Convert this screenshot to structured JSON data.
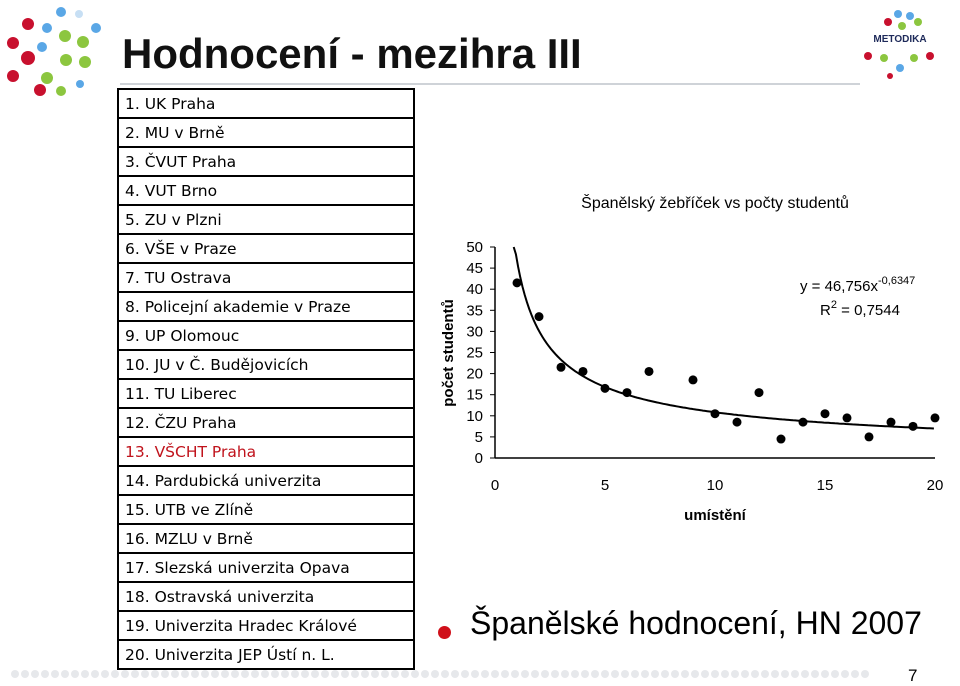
{
  "slide": {
    "title": "Hodnocení - mezihra III",
    "logo_text": "METODIKA",
    "page_number": "7",
    "bullet_text": "Španělské hodnocení, HN 2007",
    "colors": {
      "accent_red": "#c0131c",
      "dot_blue": "#5aa7e6",
      "dot_green": "#8cc63f",
      "dot_red": "#c8102e",
      "dot_gray": "#e6e8eb"
    }
  },
  "ranking": [
    {
      "label": "1. UK Praha",
      "highlight": false
    },
    {
      "label": "2. MU v Brně",
      "highlight": false
    },
    {
      "label": "3. ČVUT Praha",
      "highlight": false
    },
    {
      "label": "4. VUT Brno",
      "highlight": false
    },
    {
      "label": "5. ZU v Plzni",
      "highlight": false
    },
    {
      "label": "6. VŠE v Praze",
      "highlight": false
    },
    {
      "label": "7. TU Ostrava",
      "highlight": false
    },
    {
      "label": "8. Policejní akademie v Praze",
      "highlight": false
    },
    {
      "label": "9. UP Olomouc",
      "highlight": false
    },
    {
      "label": "10. JU v Č. Budějovicích",
      "highlight": false
    },
    {
      "label": "11. TU Liberec",
      "highlight": false
    },
    {
      "label": "12. ČZU Praha",
      "highlight": false
    },
    {
      "label": "13. VŠCHT Praha",
      "highlight": true
    },
    {
      "label": "14. Pardubická univerzita",
      "highlight": false
    },
    {
      "label": "15. UTB ve Zlíně",
      "highlight": false
    },
    {
      "label": "16. MZLU v Brně",
      "highlight": false
    },
    {
      "label": "17. Slezská univerzita Opava",
      "highlight": false
    },
    {
      "label": "18. Ostravská univerzita",
      "highlight": false
    },
    {
      "label": "19. Univerzita Hradec Králové",
      "highlight": false
    },
    {
      "label": "20. Univerzita JEP Ústí n. L.",
      "highlight": false
    }
  ],
  "chart_data": {
    "type": "scatter",
    "title": "Španělský žebříček vs počty studentů",
    "xlabel": "umístění",
    "ylabel": "počet studentů",
    "xlim": [
      0,
      20
    ],
    "ylim": [
      0,
      50
    ],
    "x_ticks": [
      "0",
      "5",
      "10",
      "15",
      "20"
    ],
    "y_ticks": [
      "0",
      "5",
      "10",
      "15",
      "20",
      "25",
      "30",
      "35",
      "40",
      "45",
      "50"
    ],
    "grid": false,
    "legend": "none",
    "series": [
      {
        "points": [
          {
            "x": 1,
            "y": 41.5
          },
          {
            "x": 2,
            "y": 33.5
          },
          {
            "x": 3,
            "y": 21.5
          },
          {
            "x": 4,
            "y": 20.5
          },
          {
            "x": 5,
            "y": 16.5
          },
          {
            "x": 6,
            "y": 15.5
          },
          {
            "x": 7,
            "y": 20.5
          },
          {
            "x": 9,
            "y": 18.5
          },
          {
            "x": 10,
            "y": 10.5
          },
          {
            "x": 11,
            "y": 8.5
          },
          {
            "x": 12,
            "y": 15.5
          },
          {
            "x": 13,
            "y": 4.5
          },
          {
            "x": 14,
            "y": 8.5
          },
          {
            "x": 15,
            "y": 10.5
          },
          {
            "x": 16,
            "y": 9.5
          },
          {
            "x": 17,
            "y": 5.0
          },
          {
            "x": 18,
            "y": 8.5
          },
          {
            "x": 19,
            "y": 7.5
          },
          {
            "x": 20,
            "y": 9.5
          }
        ]
      }
    ],
    "trendline": {
      "model": "power",
      "a": 46.756,
      "b": -0.6347,
      "equation_text": "y = 46,756x",
      "equation_exponent": "-0,6347",
      "r2_text": "R",
      "r2_exponent": "2",
      "r2_value": " = 0,7544"
    }
  }
}
